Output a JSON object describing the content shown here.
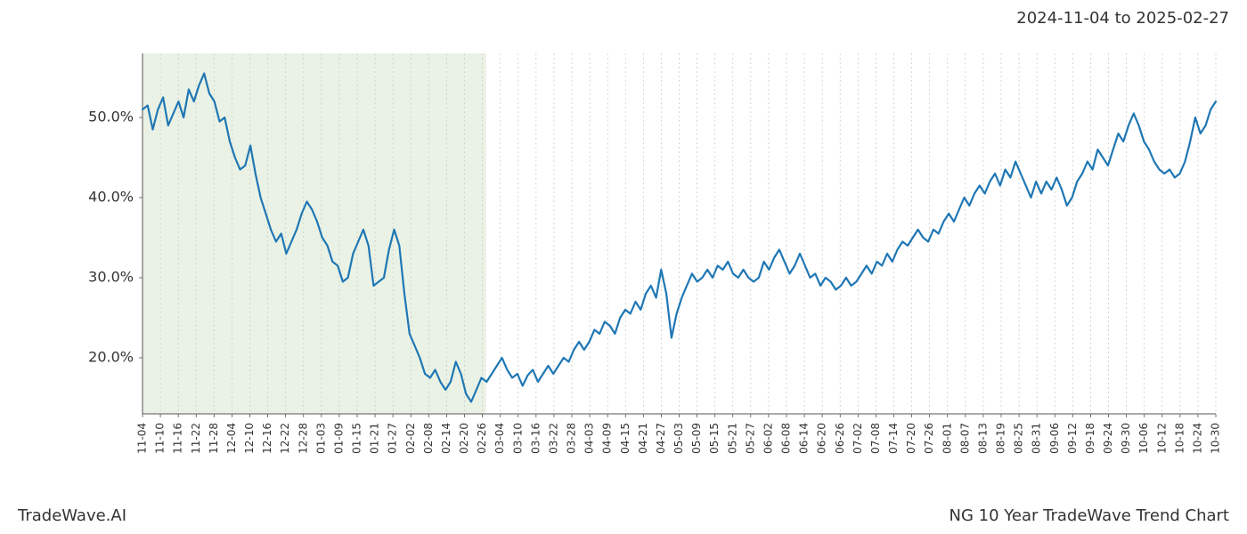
{
  "header": {
    "date_range": "2024-11-04 to 2025-02-27"
  },
  "footer": {
    "left": "TradeWave.AI",
    "right": "NG 10 Year TradeWave Trend Chart"
  },
  "chart": {
    "type": "line",
    "background_color": "#ffffff",
    "grid_color": "#cccccc",
    "grid_dash": "2,3",
    "line_color": "#1f77b4",
    "line_width": 2.2,
    "highlight_band": {
      "fill": "#d8e8d0",
      "opacity": 0.55,
      "x_start": "11-04",
      "x_end": "02-27"
    },
    "spine_color": "#555555",
    "y": {
      "lim": [
        13,
        58
      ],
      "ticks": [
        20,
        30,
        40,
        50
      ],
      "tick_format_suffix": ".0%",
      "label_fontsize": 16,
      "label_color": "#333333"
    },
    "x": {
      "labels": [
        "11-04",
        "11-10",
        "11-16",
        "11-22",
        "11-28",
        "12-04",
        "12-10",
        "12-16",
        "12-22",
        "12-28",
        "01-03",
        "01-09",
        "01-15",
        "01-21",
        "01-27",
        "02-02",
        "02-08",
        "02-14",
        "02-20",
        "02-26",
        "03-04",
        "03-10",
        "03-16",
        "03-22",
        "03-28",
        "04-03",
        "04-09",
        "04-15",
        "04-21",
        "04-27",
        "05-03",
        "05-09",
        "05-15",
        "05-21",
        "05-27",
        "06-02",
        "06-08",
        "06-14",
        "06-20",
        "06-26",
        "07-02",
        "07-08",
        "07-14",
        "07-20",
        "07-26",
        "08-01",
        "08-07",
        "08-13",
        "08-19",
        "08-25",
        "08-31",
        "09-06",
        "09-12",
        "09-18",
        "09-24",
        "09-30",
        "10-06",
        "10-12",
        "10-18",
        "10-24",
        "10-30"
      ],
      "label_fontsize": 12,
      "label_rotation": -90,
      "label_color": "#333333"
    },
    "series": {
      "values": [
        51.0,
        51.5,
        48.5,
        51.0,
        52.5,
        49.0,
        50.5,
        52.0,
        50.0,
        53.5,
        52.0,
        54.0,
        55.5,
        53.0,
        52.0,
        49.5,
        50.0,
        47.0,
        45.0,
        43.5,
        44.0,
        46.5,
        43.0,
        40.0,
        38.0,
        36.0,
        34.5,
        35.5,
        33.0,
        34.5,
        36.0,
        38.0,
        39.5,
        38.5,
        37.0,
        35.0,
        34.0,
        32.0,
        31.5,
        29.5,
        30.0,
        33.0,
        34.5,
        36.0,
        34.0,
        29.0,
        29.5,
        30.0,
        33.5,
        36.0,
        34.0,
        28.0,
        23.0,
        21.5,
        20.0,
        18.0,
        17.5,
        18.5,
        17.0,
        16.0,
        17.0,
        19.5,
        18.0,
        15.5,
        14.5,
        16.0,
        17.5,
        17.0,
        18.0,
        19.0,
        20.0,
        18.5,
        17.5,
        18.0,
        16.5,
        17.8,
        18.5,
        17.0,
        18.0,
        19.0,
        18.0,
        19.0,
        20.0,
        19.5,
        21.0,
        22.0,
        21.0,
        22.0,
        23.5,
        23.0,
        24.5,
        24.0,
        23.0,
        25.0,
        26.0,
        25.5,
        27.0,
        26.0,
        28.0,
        29.0,
        27.5,
        31.0,
        28.0,
        22.5,
        25.5,
        27.5,
        29.0,
        30.5,
        29.5,
        30.0,
        31.0,
        30.0,
        31.5,
        31.0,
        32.0,
        30.5,
        30.0,
        31.0,
        30.0,
        29.5,
        30.0,
        32.0,
        31.0,
        32.5,
        33.5,
        32.0,
        30.5,
        31.5,
        33.0,
        31.5,
        30.0,
        30.5,
        29.0,
        30.0,
        29.5,
        28.5,
        29.0,
        30.0,
        29.0,
        29.5,
        30.5,
        31.5,
        30.5,
        32.0,
        31.5,
        33.0,
        32.0,
        33.5,
        34.5,
        34.0,
        35.0,
        36.0,
        35.0,
        34.5,
        36.0,
        35.5,
        37.0,
        38.0,
        37.0,
        38.5,
        40.0,
        39.0,
        40.5,
        41.5,
        40.5,
        42.0,
        43.0,
        41.5,
        43.5,
        42.5,
        44.5,
        43.0,
        41.5,
        40.0,
        42.0,
        40.5,
        42.0,
        41.0,
        42.5,
        41.0,
        39.0,
        40.0,
        42.0,
        43.0,
        44.5,
        43.5,
        46.0,
        45.0,
        44.0,
        46.0,
        48.0,
        47.0,
        49.0,
        50.5,
        49.0,
        47.0,
        46.0,
        44.5,
        43.5,
        43.0,
        43.5,
        42.5,
        43.0,
        44.5,
        47.0,
        50.0,
        48.0,
        49.0,
        51.0,
        52.0
      ]
    }
  }
}
